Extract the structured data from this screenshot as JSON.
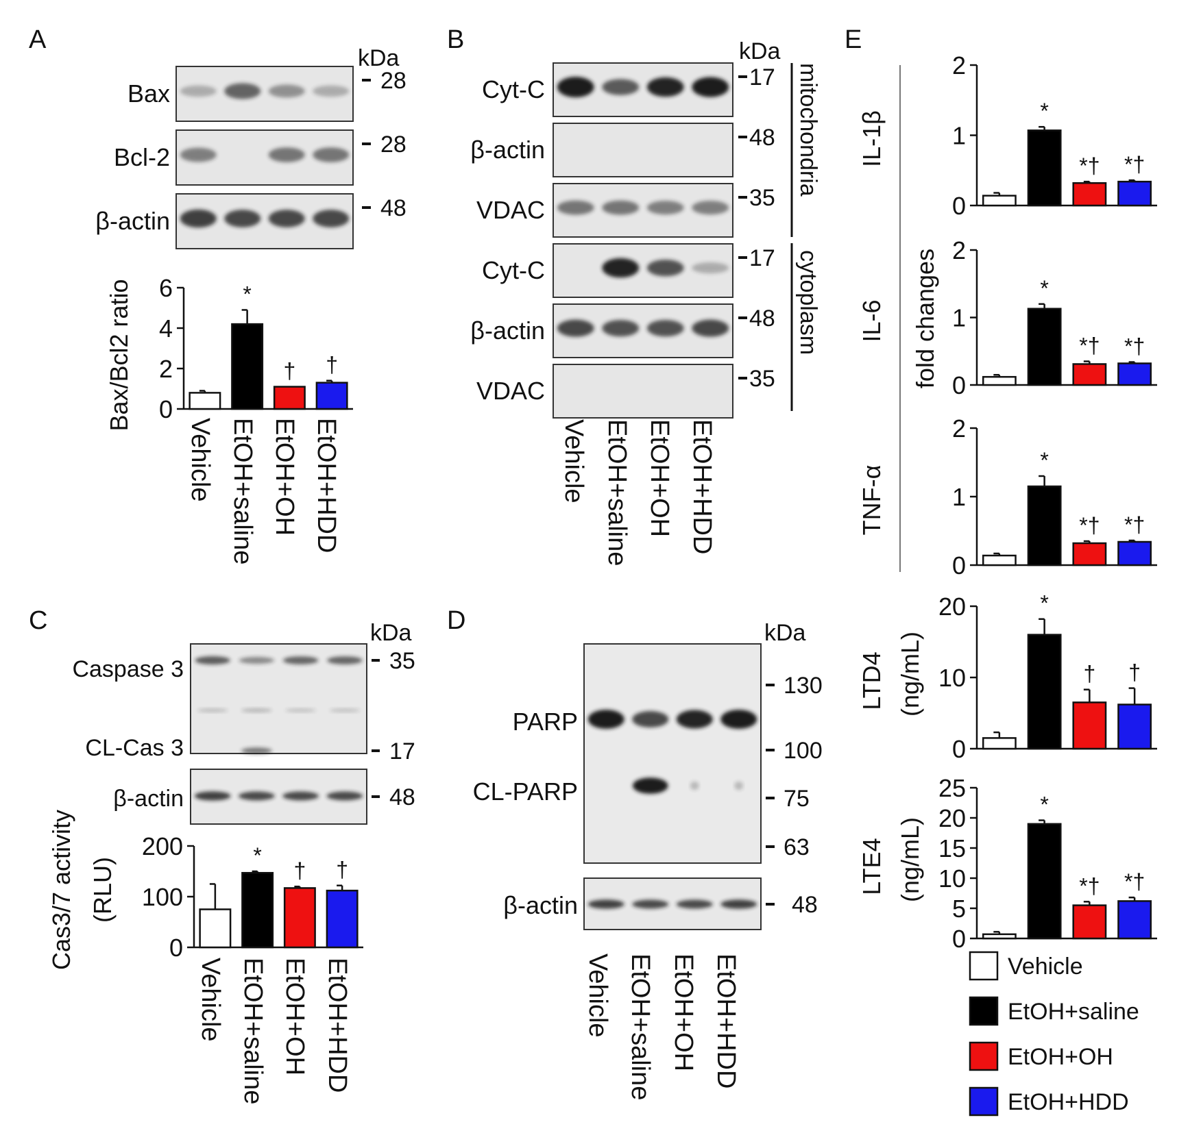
{
  "colors": {
    "Vehicle": "#ffffff",
    "EtOH+saline": "#000000",
    "EtOH+OH": "#ee1111",
    "EtOH+HDD": "#1a1aee",
    "blot_bg": "#e6e6e6",
    "band": "#1b1b1b"
  },
  "groups": [
    "Vehicle",
    "EtOH+saline",
    "EtOH+OH",
    "EtOH+HDD"
  ],
  "kda_label": "kDa",
  "panelA": {
    "letter": "A",
    "blots": [
      {
        "label": "Bax",
        "kda": "28",
        "bands": [
          0.15,
          0.55,
          0.3,
          0.15
        ]
      },
      {
        "label": "Bcl-2",
        "kda": "28",
        "bands": [
          0.4,
          0,
          0.45,
          0.45
        ]
      },
      {
        "label": "β-actin",
        "kda": "48",
        "bands": [
          0.75,
          0.7,
          0.7,
          0.7
        ]
      }
    ]
  },
  "panelB": {
    "letter": "B",
    "blots": [
      {
        "label": "Cyt-C",
        "kda": "17",
        "bands": [
          1,
          0.6,
          0.9,
          0.95
        ]
      },
      {
        "label": "β-actin",
        "kda": "48",
        "bands": [
          0,
          0,
          0,
          0
        ]
      },
      {
        "label": "VDAC",
        "kda": "35",
        "bands": [
          0.45,
          0.45,
          0.4,
          0.4
        ]
      },
      {
        "label": "Cyt-C",
        "kda": "17",
        "bands": [
          0,
          0.9,
          0.65,
          0.15
        ]
      },
      {
        "label": "β-actin",
        "kda": "48",
        "bands": [
          0.7,
          0.65,
          0.65,
          0.7
        ]
      },
      {
        "label": "VDAC",
        "kda": "35",
        "bands": [
          0,
          0,
          0,
          0
        ]
      }
    ],
    "fractions": [
      "mitochondria",
      "cytoplasm"
    ]
  },
  "panelC": {
    "letter": "C",
    "caspase_label": "Caspase 3",
    "caspase_kda": "35",
    "cl_label": "CL-Cas 3",
    "cl_kda": "17",
    "actin_label": "β-actin",
    "actin_kda": "48"
  },
  "panelD": {
    "letter": "D",
    "parp_label": "PARP",
    "clparp_label": "CL-PARP",
    "actin_label": "β-actin",
    "markers": [
      "130",
      "100",
      "75",
      "63"
    ],
    "actin_kda": "48"
  },
  "panelE": {
    "letter": "E",
    "shared_ylabel": "fold changes"
  },
  "legend": [
    "Vehicle",
    "EtOH+saline",
    "EtOH+OH",
    "EtOH+HDD"
  ],
  "chart_data": [
    {
      "type": "bar",
      "id": "A",
      "title": "",
      "ylabel": "Bax/Bcl2 ratio",
      "ylim": [
        0,
        6
      ],
      "yticks": [
        0,
        2,
        4,
        6
      ],
      "categories": [
        "Vehicle",
        "EtOH+saline",
        "EtOH+OH",
        "EtOH+HDD"
      ],
      "values": [
        0.8,
        4.2,
        1.1,
        1.3
      ],
      "errors": [
        0.1,
        0.7,
        0,
        0.1
      ],
      "annotations": [
        "",
        "*",
        "†",
        "†"
      ]
    },
    {
      "type": "bar",
      "id": "C",
      "title": "",
      "ylabel": "Cas3/7 activity",
      "ylabel2": "(RLU)",
      "ylim": [
        0,
        200
      ],
      "yticks": [
        0,
        100,
        200
      ],
      "categories": [
        "Vehicle",
        "EtOH+saline",
        "EtOH+OH",
        "EtOH+HDD"
      ],
      "values": [
        75,
        147,
        117,
        112
      ],
      "errors": [
        50,
        3,
        3,
        10
      ],
      "annotations": [
        "",
        "*",
        "†",
        "†"
      ]
    },
    {
      "type": "bar",
      "id": "E1",
      "title": "",
      "ylabel": "IL-1β",
      "ylim": [
        0,
        2
      ],
      "yticks": [
        0,
        1,
        2
      ],
      "categories": [
        "Vehicle",
        "EtOH+saline",
        "EtOH+OH",
        "EtOH+HDD"
      ],
      "values": [
        0.14,
        1.07,
        0.32,
        0.34
      ],
      "errors": [
        0.04,
        0.05,
        0.02,
        0.02
      ],
      "annotations": [
        "",
        "*",
        "*†",
        "*†"
      ]
    },
    {
      "type": "bar",
      "id": "E2",
      "title": "",
      "ylabel": "IL-6",
      "ylim": [
        0,
        2
      ],
      "yticks": [
        0,
        1,
        2
      ],
      "categories": [
        "Vehicle",
        "EtOH+saline",
        "EtOH+OH",
        "EtOH+HDD"
      ],
      "values": [
        0.12,
        1.13,
        0.31,
        0.32
      ],
      "errors": [
        0.03,
        0.07,
        0.04,
        0.02
      ],
      "annotations": [
        "",
        "*",
        "*†",
        "*†"
      ]
    },
    {
      "type": "bar",
      "id": "E3",
      "title": "",
      "ylabel": "TNF-α",
      "ylim": [
        0,
        2
      ],
      "yticks": [
        0,
        1,
        2
      ],
      "categories": [
        "Vehicle",
        "EtOH+saline",
        "EtOH+OH",
        "EtOH+HDD"
      ],
      "values": [
        0.14,
        1.15,
        0.32,
        0.34
      ],
      "errors": [
        0.03,
        0.15,
        0.03,
        0.02
      ],
      "annotations": [
        "",
        "*",
        "*†",
        "*†"
      ]
    },
    {
      "type": "bar",
      "id": "E4",
      "title": "",
      "ylabel": "LTD4",
      "ylabel2": "(ng/mL)",
      "ylim": [
        0,
        20
      ],
      "yticks": [
        0,
        10,
        20
      ],
      "categories": [
        "Vehicle",
        "EtOH+saline",
        "EtOH+OH",
        "EtOH+HDD"
      ],
      "values": [
        1.5,
        16,
        6.5,
        6.2
      ],
      "errors": [
        0.8,
        2.2,
        1.8,
        2.3
      ],
      "annotations": [
        "",
        "*",
        "†",
        "†"
      ]
    },
    {
      "type": "bar",
      "id": "E5",
      "title": "",
      "ylabel": "LTE4",
      "ylabel2": "(ng/mL)",
      "ylim": [
        0,
        25
      ],
      "yticks": [
        0,
        5,
        10,
        15,
        20,
        25
      ],
      "categories": [
        "Vehicle",
        "EtOH+saline",
        "EtOH+OH",
        "EtOH+HDD"
      ],
      "values": [
        0.7,
        19,
        5.5,
        6.2
      ],
      "errors": [
        0.4,
        0.6,
        0.6,
        0.6
      ],
      "annotations": [
        "",
        "*",
        "*†",
        "*†"
      ]
    }
  ]
}
